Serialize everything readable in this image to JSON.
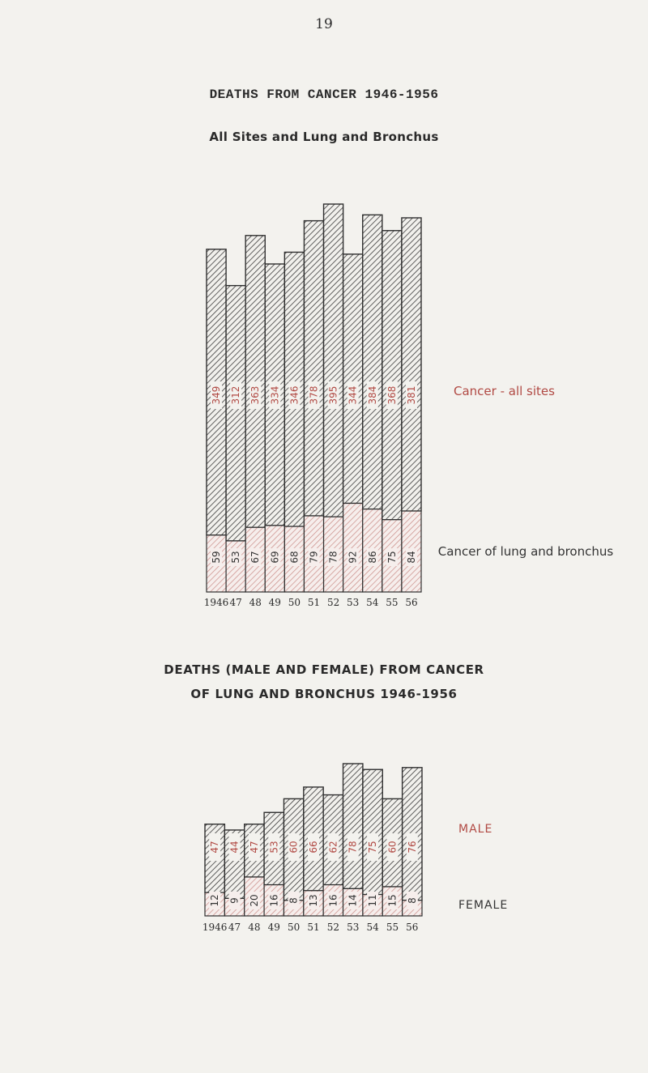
{
  "page": {
    "number": "19"
  },
  "chart1": {
    "title": "DEATHS FROM CANCER 1946-1956",
    "subtitle": "All Sites and Lung and Bronchus",
    "label_all_sites": "Cancer - all sites",
    "label_lung": "Cancer of lung and bronchus"
  },
  "chart2": {
    "title_line1": "DEATHS (MALE AND FEMALE) FROM CANCER",
    "title_line2": "OF LUNG AND BRONCHUS 1946-1956",
    "label_male": "MALE",
    "label_female": "FEMALE"
  },
  "colors": {
    "accent_red": "#b14a44",
    "hatch_dark": "#3a3a3a",
    "hatch_light": "#c98b86"
  },
  "chart_data": [
    {
      "type": "bar",
      "categories": [
        "1946",
        "47",
        "48",
        "49",
        "50",
        "51",
        "52",
        "53",
        "54",
        "55",
        "56"
      ],
      "series": [
        {
          "name": "Cancer - all sites",
          "values": [
            349,
            312,
            363,
            334,
            346,
            378,
            395,
            344,
            384,
            368,
            381
          ]
        },
        {
          "name": "Cancer of lung and bronchus",
          "values": [
            59,
            53,
            67,
            69,
            68,
            79,
            78,
            92,
            86,
            75,
            84
          ]
        }
      ],
      "title": "DEATHS FROM CANCER 1946-1956",
      "subtitle": "All Sites and Lung and Bronchus",
      "stacked": true,
      "grid": false
    },
    {
      "type": "bar",
      "categories": [
        "1946",
        "47",
        "48",
        "49",
        "50",
        "51",
        "52",
        "53",
        "54",
        "55",
        "56"
      ],
      "series": [
        {
          "name": "MALE",
          "values": [
            47,
            44,
            47,
            53,
            60,
            66,
            62,
            78,
            75,
            60,
            76
          ]
        },
        {
          "name": "FEMALE",
          "values": [
            12,
            9,
            20,
            16,
            8,
            13,
            16,
            14,
            11,
            15,
            8
          ]
        }
      ],
      "title": "DEATHS (MALE AND FEMALE) FROM CANCER OF LUNG AND BRONCHUS 1946-1956",
      "stacked": true,
      "grid": false
    }
  ]
}
